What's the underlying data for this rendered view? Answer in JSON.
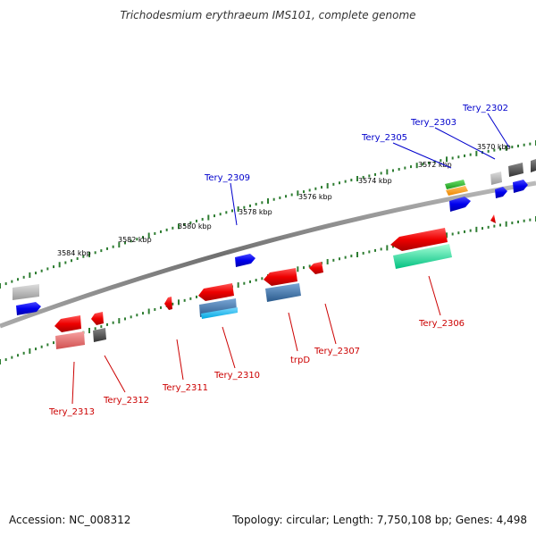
{
  "title": "Trichodesmium erythraeum IMS101, complete genome",
  "footer": {
    "accession": "Accession: NC_008312",
    "topology": "Topology: circular; Length: 7,750,108 bp; Genes: 4,498"
  },
  "colors": {
    "forward_label": "#0000cc",
    "reverse_label": "#cc0000",
    "backbone": "#808080",
    "tick": "#2e7d32"
  },
  "scale_labels": [
    "3584 kbp",
    "3582 kbp",
    "3580 kbp",
    "3578 kbp",
    "3576 kbp",
    "3574 kbp",
    "3572 kbp",
    "3570 kbp"
  ],
  "forward_genes": [
    "Tery_2309",
    "Tery_2305",
    "Tery_2303",
    "Tery_2302"
  ],
  "reverse_genes": [
    "Tery_2313",
    "Tery_2312",
    "Tery_2311",
    "Tery_2310",
    "trpD",
    "Tery_2307",
    "Tery_2306"
  ]
}
